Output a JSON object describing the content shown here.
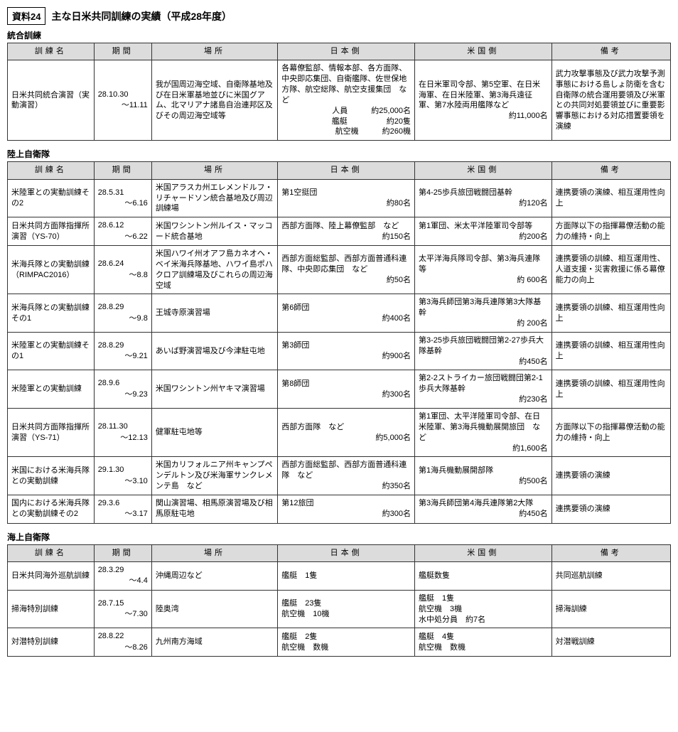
{
  "doc_number": "資料24",
  "doc_title": "主な日米共同訓練の実績（平成28年度）",
  "columns": [
    "訓練名",
    "期間",
    "場所",
    "日本側",
    "米国側",
    "備考"
  ],
  "sections": [
    {
      "title": "統合訓練",
      "rows": [
        {
          "name": "日米共同統合演習（実動演習）",
          "period_start": "28.10.30",
          "period_end": "～11.11",
          "location": "我が国周辺海空域、自衛隊基地及び在日米軍基地並びに米国グアム、北マリアナ諸島自治連邦区及びその周辺海空域等",
          "japan": "各幕僚監部、情報本部、各方面隊、中央即応集団、自衛艦隊、佐世保地方隊、航空総隊、航空支援集団　など",
          "japan_numbers": [
            "人員　　　約25,000名",
            "艦艇　　　　　約20隻",
            "航空機　　　約260機"
          ],
          "us": "在日米軍司令部、第5空軍、在日米海軍、在日米陸軍、第3海兵遠征軍、第7水陸両用艦隊など",
          "us_numbers": [
            "約11,000名"
          ],
          "remarks": "武力攻撃事態及び武力攻撃予測事態における島しょ防衛を含む自衛隊の統合運用要領及び米軍との共同対処要領並びに重要影響事態における対応措置要領を演練"
        }
      ]
    },
    {
      "title": "陸上自衛隊",
      "rows": [
        {
          "name": "米陸軍との実動訓練その2",
          "period_start": "28.5.31",
          "period_end": "～6.16",
          "location": "米国アラスカ州エレメンドルフ・リチャードソン統合基地及び周辺訓練場",
          "japan": "第1空挺団",
          "japan_numbers": [
            "約80名"
          ],
          "us": "第4-25歩兵旅団戦闘団基幹",
          "us_numbers": [
            "約120名"
          ],
          "remarks": "連携要領の演練、相互運用性向上"
        },
        {
          "name": "日米共同方面隊指揮所演習（YS-70）",
          "period_start": "28.6.12",
          "period_end": "～6.22",
          "location": "米国ワシントン州ルイス・マッコード統合基地",
          "japan": "西部方面隊、陸上幕僚監部　など",
          "japan_numbers": [
            "約150名"
          ],
          "us": "第1軍団、米太平洋陸軍司令部等",
          "us_numbers": [
            "約200名"
          ],
          "remarks": "方面隊以下の指揮幕僚活動の能力の維持・向上"
        },
        {
          "name": "米海兵隊との実動訓練（RIMPAC2016）",
          "period_start": "28.6.24",
          "period_end": "～8.8",
          "location": "米国ハワイ州オアフ島カネオヘ・ベイ米海兵隊基地、ハワイ島ポハクロア訓練場及びこれらの周辺海空域",
          "japan": "西部方面総監部、西部方面普通科連隊、中央即応集団　など",
          "japan_numbers": [
            "約50名"
          ],
          "us": "太平洋海兵隊司令部、第3海兵連隊等",
          "us_numbers": [
            "約 600名"
          ],
          "remarks": "連携要領の訓練、相互運用性、人道支援・災害救援に係る幕僚能力の向上"
        },
        {
          "name": "米海兵隊との実動訓練その1",
          "period_start": "28.8.29",
          "period_end": "～9.8",
          "location": "王城寺原演習場",
          "japan": "第6師団",
          "japan_numbers": [
            "約400名"
          ],
          "us": "第3海兵師団第3海兵連隊第3大隊基幹",
          "us_numbers": [
            "約 200名"
          ],
          "remarks": "連携要領の訓練、相互運用性向上"
        },
        {
          "name": "米陸軍との実動訓練その1",
          "period_start": "28.8.29",
          "period_end": "～9.21",
          "location": "あいば野演習場及び今津駐屯地",
          "japan": "第3師団",
          "japan_numbers": [
            "約900名"
          ],
          "us": "第3-25歩兵旅団戦闘団第2-27歩兵大隊基幹",
          "us_numbers": [
            "約450名"
          ],
          "remarks": "連携要領の訓練、相互運用性向上"
        },
        {
          "name": "米陸軍との実動訓練",
          "period_start": "28.9.6",
          "period_end": "～9.23",
          "location": "米国ワシントン州ヤキマ演習場",
          "japan": "第8師団",
          "japan_numbers": [
            "約300名"
          ],
          "us": "第2-2ストライカー旅団戦闘団第2-1歩兵大隊基幹",
          "us_numbers": [
            "約230名"
          ],
          "remarks": "連携要領の訓練、相互運用性向上"
        },
        {
          "name": "日米共同方面隊指揮所演習（YS-71）",
          "period_start": "28.11.30",
          "period_end": "～12.13",
          "location": "健軍駐屯地等",
          "japan": "西部方面隊　など",
          "japan_numbers": [
            "約5,000名"
          ],
          "us": "第1軍団、太平洋陸軍司令部、在日米陸軍、第3海兵機動展開旅団　など",
          "us_numbers": [
            "約1,600名"
          ],
          "remarks": "方面隊以下の指揮幕僚活動の能力の維持・向上"
        },
        {
          "name": "米国における米海兵隊との実動訓練",
          "period_start": "29.1.30",
          "period_end": "～3.10",
          "location": "米国カリフォルニア州キャンプペンデルトン及び米海軍サンクレメンテ島　など",
          "japan": "西部方面総監部、西部方面普通科連隊　など",
          "japan_numbers": [
            "約350名"
          ],
          "us": "第1海兵機動展開部隊",
          "us_numbers": [
            "約500名"
          ],
          "remarks": "連携要領の演練"
        },
        {
          "name": "国内における米海兵隊との実動訓練その2",
          "period_start": "29.3.6",
          "period_end": "～3.17",
          "location": "関山演習場、相馬原演習場及び相馬原駐屯地",
          "japan": "第12旅団",
          "japan_numbers": [
            "約300名"
          ],
          "us": "第3海兵師団第4海兵連隊第2大隊",
          "us_numbers": [
            "約450名"
          ],
          "remarks": "連携要領の演練"
        }
      ]
    },
    {
      "title": "海上自衛隊",
      "rows": [
        {
          "name": "日米共同海外巡航訓練",
          "period_start": "28.3.29",
          "period_end": "～4.4",
          "location": "沖縄周辺など",
          "japan": "艦艇　1隻",
          "japan_numbers": [],
          "us": "艦艇数隻",
          "us_numbers": [],
          "remarks": "共同巡航訓練"
        },
        {
          "name": "掃海特別訓練",
          "period_start": "28.7.15",
          "period_end": "～7.30",
          "location": "陸奥湾",
          "japan": "艦艇　23隻\n航空機　10機",
          "japan_numbers": [],
          "us": "艦艇　1隻\n航空機　3機\n水中処分員　約7名",
          "us_numbers": [],
          "remarks": "掃海訓練"
        },
        {
          "name": "対潜特別訓練",
          "period_start": "28.8.22",
          "period_end": "～8.26",
          "location": "九州南方海域",
          "japan": "艦艇　2隻\n航空機　数機",
          "japan_numbers": [],
          "us": "艦艇　4隻\n航空機　数機",
          "us_numbers": [],
          "remarks": "対潜戦訓練"
        }
      ]
    }
  ]
}
